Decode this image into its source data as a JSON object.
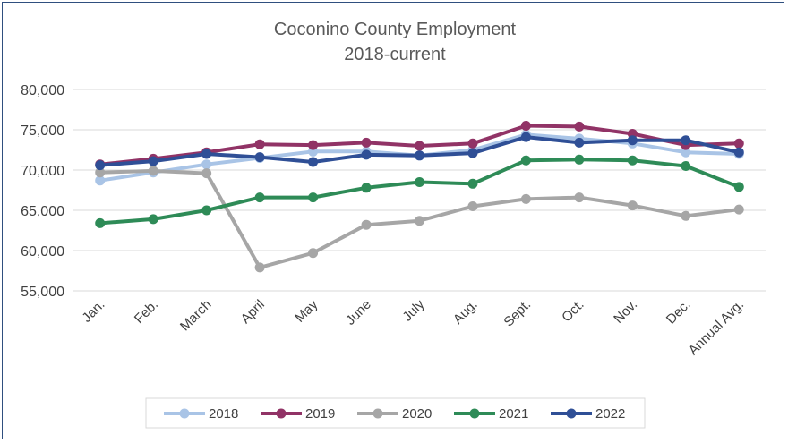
{
  "chart_data": {
    "type": "line",
    "title_line1": "Coconino County Employment",
    "title_line2": "2018-current",
    "xlabel": "",
    "ylabel": "",
    "ylim": [
      55000,
      80000
    ],
    "yticks": [
      "55,000",
      "60,000",
      "65,000",
      "70,000",
      "75,000",
      "80,000"
    ],
    "ytick_values": [
      55000,
      60000,
      65000,
      70000,
      75000,
      80000
    ],
    "categories": [
      "Jan.",
      "Feb.",
      "March",
      "April",
      "May",
      "June",
      "July",
      "Aug.",
      "Sept.",
      "Oct.",
      "Nov.",
      "Dec.",
      "Annual Avg."
    ],
    "grid": true,
    "legend_position": "bottom",
    "series": [
      {
        "name": "2018",
        "color": "#a9c4e6",
        "values": [
          68700,
          69700,
          70700,
          71500,
          72300,
          72300,
          71800,
          72500,
          74400,
          73900,
          73300,
          72200,
          72000
        ]
      },
      {
        "name": "2019",
        "color": "#913366",
        "values": [
          70700,
          71400,
          72200,
          73200,
          73100,
          73400,
          73000,
          73300,
          75500,
          75400,
          74500,
          73100,
          73300
        ]
      },
      {
        "name": "2020",
        "color": "#a6a6a6",
        "values": [
          69700,
          69900,
          69600,
          57900,
          59700,
          63200,
          63700,
          65500,
          66400,
          66600,
          65600,
          64300,
          65100
        ]
      },
      {
        "name": "2021",
        "color": "#2e8b57",
        "values": [
          63400,
          63900,
          65000,
          66600,
          66600,
          67800,
          68500,
          68300,
          71200,
          71300,
          71200,
          70500,
          67900
        ]
      },
      {
        "name": "2022",
        "color": "#2f4f96",
        "values": [
          70600,
          71100,
          72000,
          71600,
          71000,
          71900,
          71800,
          72100,
          74100,
          73400,
          73700,
          73700,
          72200
        ]
      }
    ]
  }
}
